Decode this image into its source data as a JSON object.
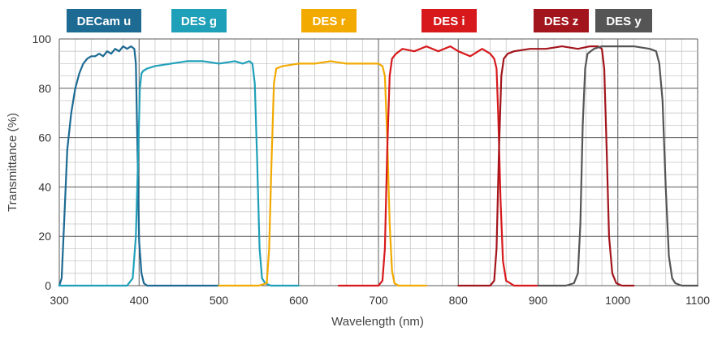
{
  "chart_data": {
    "type": "line",
    "xlabel": "Wavelength (nm)",
    "ylabel": "Transmittance (%)",
    "xlim": [
      300,
      1100
    ],
    "ylim": [
      0,
      100
    ],
    "xticks": [
      300,
      400,
      500,
      600,
      700,
      800,
      900,
      1000,
      1100
    ],
    "yticks": [
      0,
      20,
      40,
      60,
      80,
      100
    ],
    "grid": true,
    "legend_position": "top",
    "series": [
      {
        "name": "DECam u",
        "color": "#1d6a93",
        "x": [
          300,
          303,
          306,
          310,
          315,
          320,
          325,
          330,
          335,
          340,
          345,
          350,
          355,
          360,
          365,
          370,
          375,
          380,
          385,
          390,
          394,
          396,
          398,
          400,
          403,
          406,
          410,
          450,
          500
        ],
        "y": [
          0,
          3,
          25,
          55,
          70,
          80,
          86,
          90,
          92,
          93,
          93,
          94,
          93,
          95,
          94,
          96,
          95,
          97,
          96,
          97,
          96,
          90,
          55,
          18,
          5,
          1,
          0,
          0,
          0
        ]
      },
      {
        "name": "DES g",
        "color": "#1fa0b9",
        "x": [
          300,
          350,
          385,
          392,
          396,
          399,
          401,
          403,
          405,
          410,
          420,
          440,
          460,
          480,
          500,
          520,
          530,
          538,
          542,
          545,
          548,
          551,
          554,
          558,
          565,
          600
        ],
        "y": [
          0,
          0,
          0,
          3,
          20,
          55,
          80,
          86,
          87,
          88,
          89,
          90,
          91,
          91,
          90,
          91,
          90,
          91,
          90,
          82,
          50,
          15,
          3,
          1,
          0,
          0
        ]
      },
      {
        "name": "DES r",
        "color": "#f2a900",
        "x": [
          500,
          550,
          560,
          563,
          566,
          569,
          572,
          580,
          600,
          620,
          640,
          660,
          680,
          700,
          705,
          708,
          711,
          714,
          717,
          720,
          725,
          760
        ],
        "y": [
          0,
          0,
          1,
          15,
          50,
          82,
          88,
          89,
          90,
          90,
          91,
          90,
          90,
          90,
          89,
          85,
          60,
          25,
          6,
          1,
          0,
          0
        ]
      },
      {
        "name": "DES i",
        "color": "#d7191c",
        "x": [
          650,
          700,
          705,
          708,
          711,
          714,
          717,
          722,
          730,
          745,
          760,
          775,
          790,
          800,
          815,
          830,
          840,
          845,
          848,
          850,
          853,
          856,
          860,
          870,
          900
        ],
        "y": [
          0,
          0,
          2,
          15,
          55,
          85,
          92,
          94,
          96,
          95,
          97,
          95,
          97,
          95,
          93,
          96,
          94,
          92,
          88,
          70,
          35,
          10,
          2,
          0,
          0
        ]
      },
      {
        "name": "DES z",
        "color": "#a3151c",
        "x": [
          800,
          840,
          845,
          848,
          851,
          854,
          857,
          862,
          870,
          890,
          910,
          930,
          950,
          965,
          975,
          980,
          983,
          986,
          989,
          993,
          998,
          1005,
          1020
        ],
        "y": [
          0,
          0,
          2,
          15,
          55,
          85,
          92,
          94,
          95,
          96,
          96,
          97,
          96,
          97,
          97,
          96,
          88,
          55,
          20,
          5,
          1,
          0,
          0
        ]
      },
      {
        "name": "DES y",
        "color": "#555555",
        "x": [
          900,
          935,
          945,
          950,
          953,
          956,
          959,
          962,
          966,
          970,
          980,
          1000,
          1020,
          1040,
          1048,
          1052,
          1056,
          1060,
          1064,
          1068,
          1072,
          1080,
          1100
        ],
        "y": [
          0,
          0,
          1,
          5,
          25,
          65,
          88,
          94,
          95,
          96,
          97,
          97,
          97,
          96,
          95,
          90,
          75,
          40,
          12,
          3,
          1,
          0,
          0
        ]
      }
    ]
  }
}
